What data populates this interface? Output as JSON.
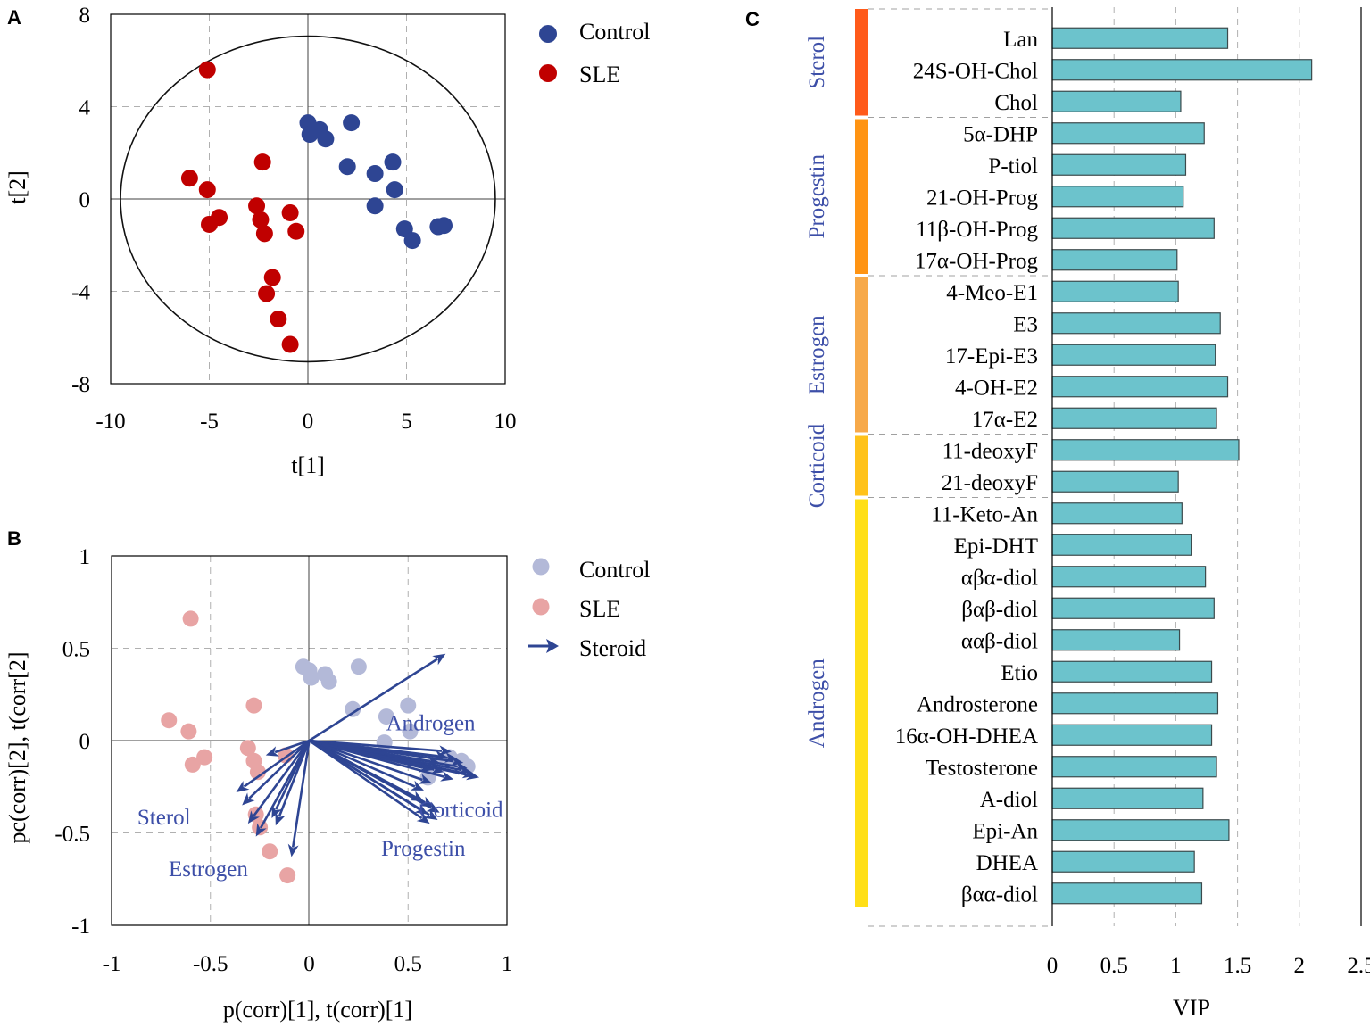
{
  "colors": {
    "control": "#2e4593",
    "sle": "#c00000",
    "control_light": "#b3b9d8",
    "sle_light": "#e8a4a4",
    "arrow": "#2e4593",
    "group_text": "#3d4fa8",
    "bar_fill": "#6cc3cc",
    "bar_stroke": "#3b4a4c",
    "grid": "#b0b0b0"
  },
  "chart_data": [
    {
      "panel": "A",
      "type": "scatter",
      "xlabel": "t[1]",
      "ylabel": "t[2]",
      "xlim": [
        -10,
        10
      ],
      "ylim": [
        -8,
        8
      ],
      "xticks": [
        "-10",
        "-5",
        "0",
        "5",
        "10"
      ],
      "yticks": [
        "8",
        "4",
        "0",
        "-4",
        "-8"
      ],
      "ellipse": {
        "rx": 9.5,
        "ry": 7.05
      },
      "legend": [
        "Control",
        "SLE"
      ],
      "series": [
        {
          "name": "Control",
          "points": [
            [
              0,
              3.3
            ],
            [
              0.1,
              2.8
            ],
            [
              0.6,
              3.0
            ],
            [
              0.9,
              2.6
            ],
            [
              2.2,
              3.3
            ],
            [
              2.0,
              1.4
            ],
            [
              3.4,
              1.1
            ],
            [
              4.3,
              1.6
            ],
            [
              4.4,
              0.4
            ],
            [
              3.4,
              -0.3
            ],
            [
              4.9,
              -1.3
            ],
            [
              5.3,
              -1.8
            ],
            [
              6.6,
              -1.2
            ],
            [
              6.9,
              -1.15
            ]
          ]
        },
        {
          "name": "SLE",
          "points": [
            [
              -5.1,
              5.6
            ],
            [
              -6.0,
              0.9
            ],
            [
              -5.1,
              0.4
            ],
            [
              -5.0,
              -1.1
            ],
            [
              -4.5,
              -0.8
            ],
            [
              -2.3,
              1.6
            ],
            [
              -2.6,
              -0.3
            ],
            [
              -2.4,
              -0.9
            ],
            [
              -2.2,
              -1.5
            ],
            [
              -0.9,
              -0.6
            ],
            [
              -0.6,
              -1.4
            ],
            [
              -1.8,
              -3.4
            ],
            [
              -2.1,
              -4.1
            ],
            [
              -1.5,
              -5.2
            ],
            [
              -0.9,
              -6.3
            ]
          ]
        }
      ]
    },
    {
      "panel": "B",
      "type": "scatter",
      "xlabel": "p(corr)[1], t(corr)[1]",
      "ylabel": "pc(corr)[2], t(corr[2]",
      "xlim": [
        -1,
        1
      ],
      "ylim": [
        -1,
        1
      ],
      "xticks": [
        "-1",
        "-0.5",
        "0",
        "0.5",
        "1"
      ],
      "yticks": [
        "1",
        "0.5",
        "0",
        "-0.5",
        "-1"
      ],
      "legend": [
        "Control",
        "SLE",
        "Steroid"
      ],
      "series": [
        {
          "name": "Control",
          "points": [
            [
              -0.03,
              0.4
            ],
            [
              0.0,
              0.38
            ],
            [
              0.01,
              0.34
            ],
            [
              0.08,
              0.36
            ],
            [
              0.1,
              0.32
            ],
            [
              0.25,
              0.4
            ],
            [
              0.22,
              0.17
            ],
            [
              0.39,
              0.13
            ],
            [
              0.5,
              0.19
            ],
            [
              0.51,
              0.05
            ],
            [
              0.38,
              -0.01
            ],
            [
              0.64,
              -0.12
            ],
            [
              0.71,
              -0.09
            ],
            [
              0.77,
              -0.11
            ],
            [
              0.8,
              -0.14
            ],
            [
              0.6,
              -0.2
            ]
          ]
        },
        {
          "name": "SLE",
          "points": [
            [
              -0.6,
              0.66
            ],
            [
              -0.71,
              0.11
            ],
            [
              -0.61,
              0.05
            ],
            [
              -0.59,
              -0.13
            ],
            [
              -0.53,
              -0.09
            ],
            [
              -0.28,
              0.19
            ],
            [
              -0.31,
              -0.04
            ],
            [
              -0.28,
              -0.11
            ],
            [
              -0.26,
              -0.17
            ],
            [
              -0.12,
              -0.08
            ],
            [
              -0.27,
              -0.4
            ],
            [
              -0.25,
              -0.47
            ],
            [
              -0.2,
              -0.6
            ],
            [
              -0.11,
              -0.73
            ]
          ]
        }
      ],
      "arrows": [
        {
          "group": "Androgen",
          "vectors": [
            [
              0.69,
              0.47
            ],
            [
              0.72,
              -0.06
            ],
            [
              0.75,
              -0.1
            ],
            [
              0.78,
              -0.12
            ],
            [
              0.8,
              -0.15
            ],
            [
              0.82,
              -0.17
            ],
            [
              0.84,
              -0.19
            ],
            [
              0.7,
              -0.09
            ],
            [
              0.66,
              -0.12
            ],
            [
              0.73,
              -0.21
            ],
            [
              0.68,
              -0.17
            ],
            [
              0.86,
              -0.2
            ],
            [
              0.62,
              -0.16
            ]
          ]
        },
        {
          "group": "Corticoid",
          "vectors": [
            [
              0.62,
              -0.23
            ],
            [
              0.58,
              -0.27
            ]
          ]
        },
        {
          "group": "Progestin",
          "vectors": [
            [
              0.65,
              -0.43
            ],
            [
              0.61,
              -0.45
            ],
            [
              0.66,
              -0.39
            ],
            [
              0.58,
              -0.33
            ],
            [
              0.63,
              -0.36
            ],
            [
              0.6,
              -0.4
            ]
          ]
        },
        {
          "group": "Estrogen",
          "vectors": [
            [
              -0.09,
              -0.63
            ],
            [
              -0.17,
              -0.46
            ],
            [
              -0.27,
              -0.52
            ],
            [
              -0.19,
              -0.42
            ],
            [
              -0.31,
              -0.45
            ]
          ]
        },
        {
          "group": "Sterol",
          "vectors": [
            [
              -0.34,
              -0.35
            ],
            [
              -0.37,
              -0.28
            ],
            [
              -0.22,
              -0.08
            ]
          ]
        }
      ],
      "annotations": [
        {
          "text": "Androgen",
          "x": 0.84,
          "y": 0.1
        },
        {
          "text": "Corticoid",
          "x": 0.98,
          "y": -0.37
        },
        {
          "text": "Progestin",
          "x": 0.79,
          "y": -0.58
        },
        {
          "text": "Sterol",
          "x": -0.6,
          "y": -0.41
        },
        {
          "text": "Estrogen",
          "x": -0.31,
          "y": -0.69
        }
      ]
    },
    {
      "panel": "C",
      "type": "bar",
      "orientation": "horizontal",
      "xlabel": "VIP",
      "xlim": [
        0,
        2.5
      ],
      "xticks": [
        "0",
        "0.5",
        "1",
        "1.5",
        "2",
        "2.5"
      ],
      "categories": [
        "Lan",
        "24S-OH-Chol",
        "Chol",
        "5α-DHP",
        "P-tiol",
        "21-OH-Prog",
        "11β-OH-Prog",
        "17α-OH-Prog",
        "4-Meo-E1",
        "E3",
        "17-Epi-E3",
        "4-OH-E2",
        "17α-E2",
        "11-deoxyF",
        "21-deoxyF",
        "11-Keto-An",
        "Epi-DHT",
        "αβα-diol",
        "βαβ-diol",
        "ααβ-diol",
        "Etio",
        "Androsterone",
        "16α-OH-DHEA",
        "Testosterone",
        "A-diol",
        "Epi-An",
        "DHEA",
        "βαα-diol"
      ],
      "values": [
        1.42,
        2.1,
        1.04,
        1.23,
        1.08,
        1.06,
        1.31,
        1.01,
        1.02,
        1.36,
        1.32,
        1.42,
        1.33,
        1.51,
        1.02,
        1.05,
        1.13,
        1.24,
        1.31,
        1.03,
        1.29,
        1.34,
        1.29,
        1.33,
        1.22,
        1.43,
        1.15,
        1.21
      ],
      "groups": [
        {
          "name": "Sterol",
          "start": 0,
          "count": 3,
          "color": "#ff5a1a"
        },
        {
          "name": "Progestin",
          "start": 3,
          "count": 5,
          "color": "#ff9413"
        },
        {
          "name": "Estrogen",
          "start": 8,
          "count": 5,
          "color": "#f7a949"
        },
        {
          "name": "Corticoid",
          "start": 13,
          "count": 2,
          "color": "#ffc21a"
        },
        {
          "name": "Androgen",
          "start": 15,
          "count": 13,
          "color": "#ffdf17"
        }
      ]
    }
  ],
  "panel_labels": [
    "A",
    "B",
    "C"
  ]
}
